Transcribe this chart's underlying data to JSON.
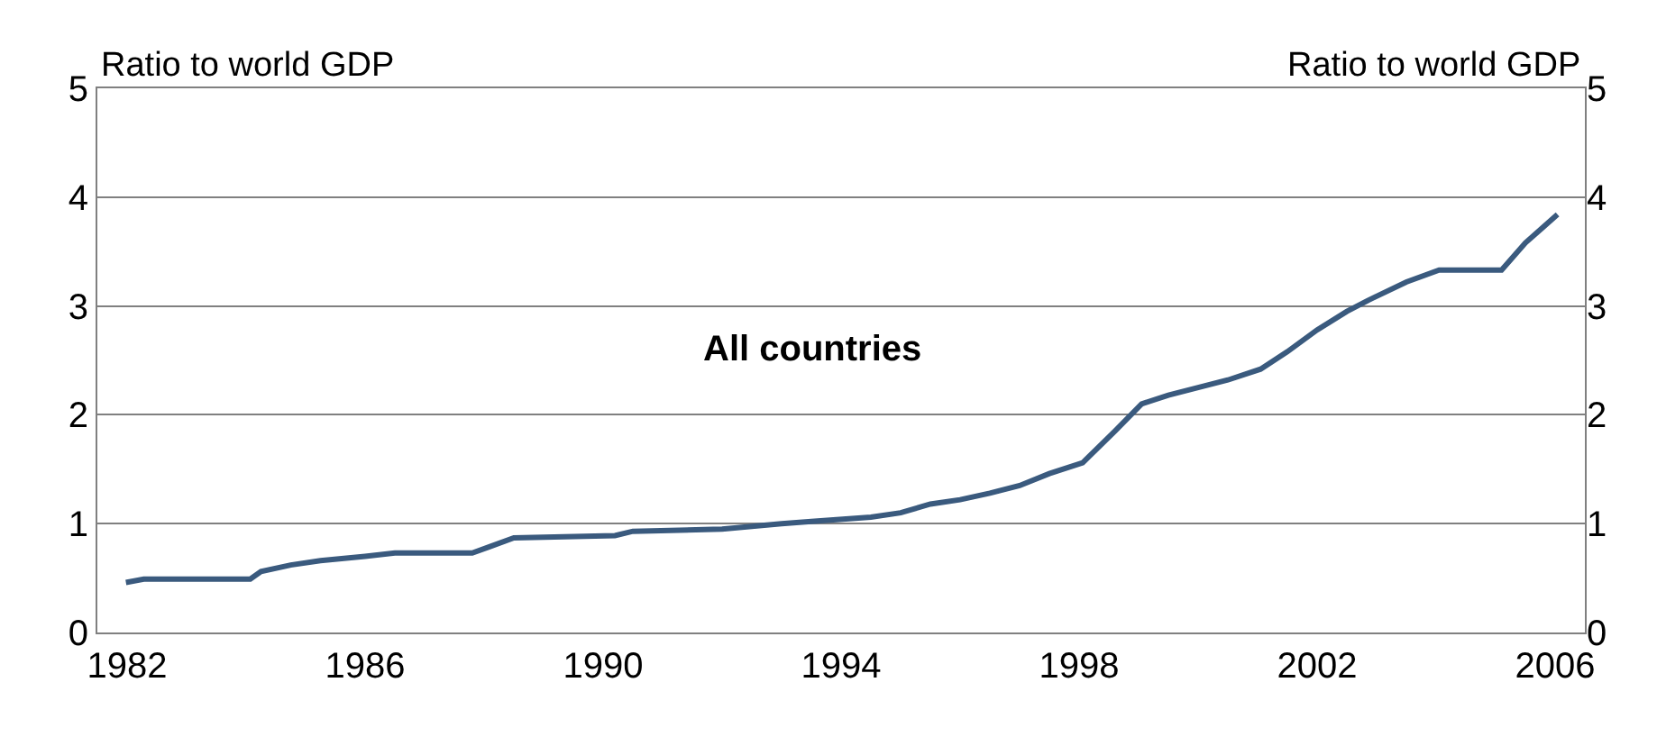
{
  "chart_data": {
    "type": "line",
    "ylabel": "Ratio to world GDP",
    "y2label": "Ratio to world GDP",
    "annotations": [
      "All countries"
    ],
    "x": [
      1982.48,
      1982.78,
      1984.57,
      1984.75,
      1985.25,
      1985.75,
      1986.5,
      1987,
      1988.3,
      1988.6,
      1989,
      1990.7,
      1991,
      1992.5,
      1993.5,
      1994,
      1995,
      1995.5,
      1996,
      1996.5,
      1997,
      1997.5,
      1998,
      1998.56,
      1999.1,
      1999.55,
      2000,
      2000.5,
      2001,
      2001.55,
      2002,
      2002.5,
      2003,
      2003.35,
      2004,
      2004.55,
      2005.6,
      2006,
      2006.54
    ],
    "series": [
      {
        "color": "#3a5a7e",
        "values": [
          0.46,
          0.49,
          0.49,
          0.56,
          0.62,
          0.66,
          0.7,
          0.73,
          0.73,
          0.79,
          0.87,
          0.89,
          0.93,
          0.95,
          1.0,
          1.02,
          1.06,
          1.1,
          1.18,
          1.22,
          1.28,
          1.35,
          1.46,
          1.56,
          1.85,
          2.1,
          2.18,
          2.25,
          2.32,
          2.42,
          2.58,
          2.78,
          2.95,
          3.05,
          3.22,
          3.33,
          3.33,
          3.58,
          3.84
        ]
      }
    ],
    "xlim": [
      1982,
      2007
    ],
    "xticks": [
      {
        "value": 1982.5,
        "label": "1982"
      },
      {
        "value": 1986.5,
        "label": "1986"
      },
      {
        "value": 1990.5,
        "label": "1990"
      },
      {
        "value": 1994.5,
        "label": "1994"
      },
      {
        "value": 1998.5,
        "label": "1998"
      },
      {
        "value": 2002.5,
        "label": "2002"
      },
      {
        "value": 2006.5,
        "label": "2006"
      }
    ],
    "ylim": [
      0,
      5
    ],
    "yticks": [
      0,
      1,
      2,
      3,
      4,
      5
    ],
    "y2lim": [
      0,
      5
    ],
    "y2ticks": [
      0,
      1,
      2,
      3,
      4,
      5
    ],
    "grid": "y",
    "legend": false,
    "marker": "none",
    "line_style": "solid"
  }
}
